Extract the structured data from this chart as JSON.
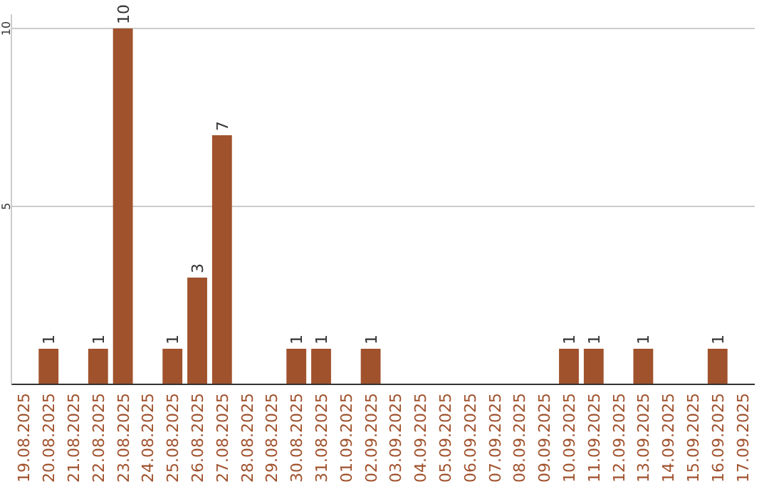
{
  "chart_data": {
    "type": "bar",
    "categories": [
      "19.08.2025",
      "20.08.2025",
      "21.08.2025",
      "22.08.2025",
      "23.08.2025",
      "24.08.2025",
      "25.08.2025",
      "26.08.2025",
      "27.08.2025",
      "28.08.2025",
      "29.08.2025",
      "30.08.2025",
      "31.08.2025",
      "01.09.2025",
      "02.09.2025",
      "03.09.2025",
      "04.09.2025",
      "05.09.2025",
      "06.09.2025",
      "07.09.2025",
      "08.09.2025",
      "09.09.2025",
      "10.09.2025",
      "11.09.2025",
      "12.09.2025",
      "13.09.2025",
      "14.09.2025",
      "15.09.2025",
      "16.09.2025",
      "17.09.2025"
    ],
    "values": [
      null,
      1,
      null,
      1,
      10,
      null,
      1,
      3,
      7,
      null,
      null,
      1,
      1,
      null,
      1,
      null,
      null,
      null,
      null,
      null,
      null,
      null,
      1,
      1,
      null,
      1,
      null,
      null,
      1,
      null
    ],
    "color": "#a0522d",
    "ylim": [
      0,
      10
    ],
    "yticks": [
      5,
      10
    ],
    "grid": "y",
    "data_labels": true
  }
}
